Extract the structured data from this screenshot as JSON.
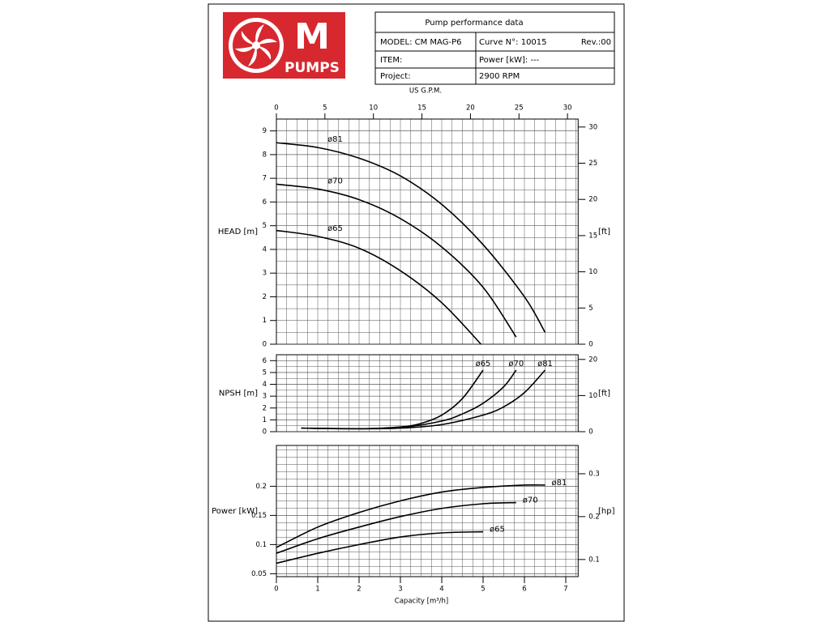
{
  "logo": {
    "letter": "M",
    "brand": "PUMPS"
  },
  "header": {
    "title": "Pump performance data",
    "model": "MODEL: CM MAG-P6",
    "curve": "Curve N°: 10015",
    "rev": "Rev.:00",
    "item": "ITEM:",
    "power": "Power [kW]: ---",
    "project": "Project:",
    "speed": "2900 RPM"
  },
  "chart_data": [
    {
      "type": "line",
      "ylabel": "HEAD [m]",
      "y2label": "[ft]",
      "x2label": "US G.P.M.",
      "grid": true,
      "xlim": [
        0,
        7.3
      ],
      "ylim": [
        0,
        9.5
      ],
      "yticks": [
        0,
        1,
        2,
        3,
        4,
        5,
        6,
        7,
        8,
        9
      ],
      "y2lim": [
        0,
        31.1
      ],
      "y2ticks": [
        0,
        5,
        10,
        15,
        20,
        25,
        30
      ],
      "x2lim": [
        0,
        31.1
      ],
      "x2ticks": [
        0,
        5,
        10,
        15,
        20,
        25,
        30
      ],
      "series": [
        {
          "name": "ø81",
          "color": "#000000",
          "x": [
            0,
            1,
            2,
            3,
            4,
            5,
            6,
            6.5
          ],
          "values": [
            8.5,
            8.3,
            7.85,
            7.1,
            5.9,
            4.2,
            2.0,
            0.5
          ]
        },
        {
          "name": "ø70",
          "color": "#000000",
          "x": [
            0,
            1,
            2,
            3,
            4,
            5,
            5.8
          ],
          "values": [
            6.75,
            6.55,
            6.1,
            5.3,
            4.1,
            2.4,
            0.3
          ]
        },
        {
          "name": "ø65",
          "color": "#000000",
          "x": [
            0,
            1,
            2,
            3,
            4,
            4.95
          ],
          "values": [
            4.8,
            4.55,
            4.05,
            3.1,
            1.75,
            0
          ]
        }
      ]
    },
    {
      "type": "line",
      "ylabel": "NPSH [m]",
      "y2label": "[ft]",
      "grid": true,
      "xlim": [
        0,
        7.3
      ],
      "ylim": [
        0,
        6.5
      ],
      "yticks": [
        0,
        1,
        2,
        3,
        4,
        5,
        6
      ],
      "y2lim": [
        0,
        21.3
      ],
      "y2ticks": [
        0,
        10,
        20
      ],
      "series": [
        {
          "name": "ø65",
          "color": "#000000",
          "x": [
            0.6,
            2,
            3,
            3.5,
            4,
            4.5,
            5
          ],
          "values": [
            0.3,
            0.25,
            0.4,
            0.7,
            1.4,
            2.8,
            5.2
          ]
        },
        {
          "name": "ø70",
          "color": "#000000",
          "x": [
            0.6,
            2,
            3,
            4,
            4.5,
            5,
            5.5,
            5.8
          ],
          "values": [
            0.3,
            0.25,
            0.35,
            0.9,
            1.5,
            2.4,
            3.8,
            5.2
          ]
        },
        {
          "name": "ø81",
          "color": "#000000",
          "x": [
            0.6,
            2,
            3,
            4,
            5,
            5.5,
            6,
            6.5
          ],
          "values": [
            0.3,
            0.25,
            0.3,
            0.6,
            1.4,
            2.1,
            3.3,
            5.2
          ]
        }
      ]
    },
    {
      "type": "line",
      "ylabel": "Power [kW]",
      "y2label": "[hp]",
      "xlabel": "Capacity [m³/h]",
      "grid": true,
      "xlim": [
        0,
        7.3
      ],
      "xticks": [
        0,
        1,
        2,
        3,
        4,
        5,
        6,
        7
      ],
      "ylim": [
        0.045,
        0.27
      ],
      "yticks": [
        0.05,
        0.1,
        0.15,
        0.2
      ],
      "y2lim": [
        0.06,
        0.366
      ],
      "y2ticks": [
        0.1,
        0.2,
        0.3
      ],
      "series": [
        {
          "name": "ø81",
          "color": "#000000",
          "x": [
            0,
            1,
            2,
            3,
            4,
            5,
            6,
            6.5
          ],
          "values": [
            0.095,
            0.13,
            0.155,
            0.175,
            0.19,
            0.198,
            0.202,
            0.202
          ]
        },
        {
          "name": "ø70",
          "color": "#000000",
          "x": [
            0,
            1,
            2,
            3,
            4,
            5,
            5.8
          ],
          "values": [
            0.085,
            0.11,
            0.13,
            0.148,
            0.162,
            0.17,
            0.172
          ]
        },
        {
          "name": "ø65",
          "color": "#000000",
          "x": [
            0,
            1,
            2,
            3,
            4,
            5
          ],
          "values": [
            0.068,
            0.085,
            0.1,
            0.113,
            0.12,
            0.122
          ]
        }
      ]
    }
  ]
}
